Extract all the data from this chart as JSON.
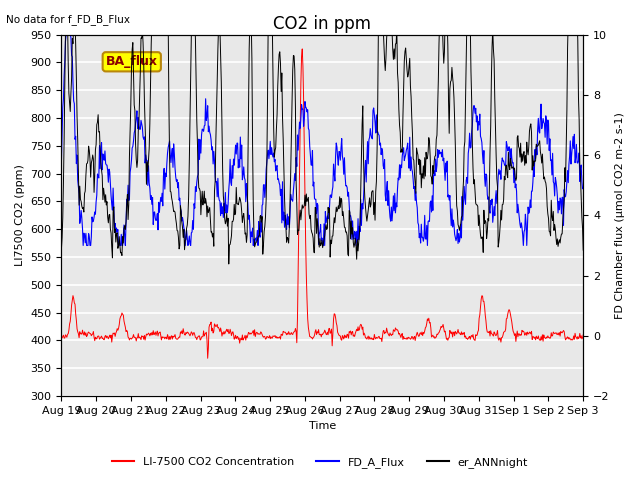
{
  "title": "CO2 in ppm",
  "subtitle": "No data for f_FD_B_Flux",
  "annotation": "BA_flux",
  "xlabel": "Time",
  "ylabel_left": "LI7500 CO2 (ppm)",
  "ylabel_right": "FD Chamber flux (μmol CO2 m-2 s-1)",
  "ylim_left": [
    300,
    950
  ],
  "ylim_right": [
    -2,
    10
  ],
  "yticks_left": [
    300,
    350,
    400,
    450,
    500,
    550,
    600,
    650,
    700,
    750,
    800,
    850,
    900,
    950
  ],
  "yticks_right": [
    -2,
    0,
    2,
    4,
    6,
    8,
    10
  ],
  "xtick_labels": [
    "Aug 19",
    "Aug 20",
    "Aug 21",
    "Aug 22",
    "Aug 23",
    "Aug 24",
    "Aug 25",
    "Aug 26",
    "Aug 27",
    "Aug 28",
    "Aug 29",
    "Aug 30",
    "Aug 31",
    "Sep 1",
    "Sep 2",
    "Sep 3"
  ],
  "n_days": 15.5,
  "line_co2_color": "red",
  "line_fd_color": "blue",
  "line_er_color": "black",
  "legend_labels": [
    "LI-7500 CO2 Concentration",
    "FD_A_Flux",
    "er_ANNnight"
  ],
  "legend_colors": [
    "red",
    "blue",
    "black"
  ],
  "bg_color": "#e8e8e8",
  "grid_color": "white",
  "annotation_bg": "#ffff00",
  "annotation_text_color": "#8b0000",
  "title_fontsize": 12,
  "label_fontsize": 8,
  "tick_fontsize": 8
}
